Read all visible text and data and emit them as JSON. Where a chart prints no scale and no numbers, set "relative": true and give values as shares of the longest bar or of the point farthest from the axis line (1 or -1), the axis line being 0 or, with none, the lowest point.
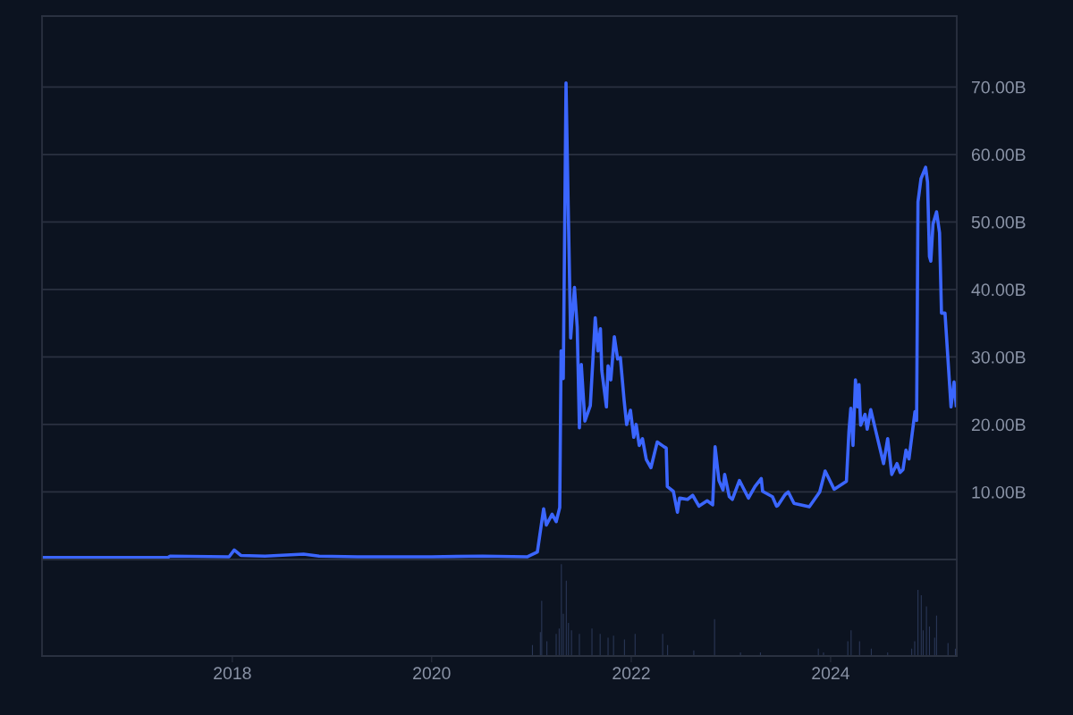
{
  "chart_data": [
    {
      "type": "line",
      "xlim": [
        "2016-02-04",
        "2025-04-07"
      ],
      "ylim": [
        0,
        80.5
      ],
      "yticks": [
        {
          "value": 0,
          "label": null
        },
        {
          "value": 10,
          "label": "10.00B"
        },
        {
          "value": 20,
          "label": "20.00B"
        },
        {
          "value": 30,
          "label": "30.00B"
        },
        {
          "value": 40,
          "label": "40.00B"
        },
        {
          "value": 50,
          "label": "50.00B"
        },
        {
          "value": 60,
          "label": "60.00B"
        },
        {
          "value": 70,
          "label": "70.00B"
        }
      ],
      "grid": "y",
      "tick_labels": "y",
      "series": [
        {
          "color": "#3b66ff",
          "x": [
            "2016-02-04",
            "2017-05-10",
            "2017-05-18",
            "2017-12-20",
            "2018-01-08",
            "2018-02-01",
            "2018-05-01",
            "2018-09-19",
            "2018-11-15",
            "2019-04-04",
            "2020-01-01",
            "2020-07-06",
            "2020-12-17",
            "2021-01-22",
            "2021-02-14",
            "2021-02-24",
            "2021-03-17",
            "2021-04-01",
            "2021-04-14",
            "2021-04-19",
            "2021-04-27",
            "2021-05-07",
            "2021-05-15",
            "2021-05-24",
            "2021-06-07",
            "2021-06-17",
            "2021-06-25",
            "2021-07-02",
            "2021-07-15",
            "2021-08-04",
            "2021-08-22",
            "2021-09-01",
            "2021-09-10",
            "2021-09-15",
            "2021-10-02",
            "2021-10-08",
            "2021-10-18",
            "2021-10-31",
            "2021-11-12",
            "2021-11-22",
            "2021-12-06",
            "2021-12-15",
            "2021-12-29",
            "2022-01-10",
            "2022-01-19",
            "2022-01-30",
            "2022-02-11",
            "2022-02-25",
            "2022-03-14",
            "2022-04-06",
            "2022-05-01",
            "2022-05-09",
            "2022-05-13",
            "2022-06-04",
            "2022-06-19",
            "2022-06-27",
            "2022-07-26",
            "2022-08-14",
            "2022-09-06",
            "2022-10-06",
            "2022-10-26",
            "2022-11-04",
            "2022-11-18",
            "2022-12-03",
            "2022-12-09",
            "2022-12-26",
            "2023-01-06",
            "2023-02-01",
            "2023-03-06",
            "2023-03-30",
            "2023-04-22",
            "2023-04-27",
            "2023-06-02",
            "2023-06-17",
            "2023-06-22",
            "2023-07-18",
            "2023-07-30",
            "2023-08-20",
            "2023-10-15",
            "2023-11-22",
            "2023-12-12",
            "2024-01-14",
            "2024-02-28",
            "2024-03-08",
            "2024-03-15",
            "2024-03-23",
            "2024-04-01",
            "2024-04-09",
            "2024-04-14",
            "2024-04-20",
            "2024-05-06",
            "2024-05-14",
            "2024-05-27",
            "2024-06-27",
            "2024-07-13",
            "2024-07-28",
            "2024-08-12",
            "2024-08-31",
            "2024-09-12",
            "2024-09-22",
            "2024-10-03",
            "2024-10-14",
            "2024-11-05",
            "2024-11-11",
            "2024-11-16",
            "2024-11-27",
            "2024-12-14",
            "2024-12-21",
            "2024-12-28",
            "2025-01-02",
            "2025-01-10",
            "2025-01-23",
            "2025-02-03",
            "2025-02-10",
            "2025-02-23",
            "2025-03-06",
            "2025-03-17",
            "2025-03-28",
            "2025-04-05"
          ],
          "values": [
            0.3,
            0.3,
            0.5,
            0.4,
            1.4,
            0.6,
            0.5,
            0.8,
            0.5,
            0.4,
            0.4,
            0.5,
            0.4,
            1.1,
            7.5,
            5.1,
            6.7,
            5.6,
            7.7,
            30.9,
            26.8,
            70.6,
            52.4,
            32.8,
            40.3,
            34.4,
            19.5,
            28.9,
            20.5,
            22.8,
            35.8,
            30.9,
            34.2,
            28.0,
            22.6,
            28.7,
            26.6,
            33.0,
            29.7,
            29.9,
            23.5,
            20.0,
            22.1,
            18.1,
            20.0,
            16.9,
            17.9,
            14.8,
            13.6,
            17.4,
            16.7,
            16.5,
            10.8,
            10.1,
            7.0,
            9.1,
            8.9,
            9.5,
            7.9,
            8.7,
            8.1,
            16.7,
            11.7,
            10.3,
            12.6,
            9.3,
            8.9,
            11.7,
            9.1,
            10.8,
            12.0,
            10.1,
            9.3,
            7.9,
            8.0,
            9.6,
            10.0,
            8.3,
            7.8,
            10.0,
            13.1,
            10.4,
            11.6,
            18.9,
            22.4,
            16.9,
            26.6,
            22.6,
            25.9,
            19.9,
            21.5,
            19.3,
            22.2,
            16.9,
            14.2,
            17.9,
            12.6,
            14.2,
            12.9,
            13.3,
            16.2,
            14.9,
            21.9,
            20.6,
            53.0,
            56.4,
            58.1,
            55.9,
            44.9,
            44.2,
            49.7,
            51.5,
            48.4,
            36.5,
            36.5,
            29.5,
            22.6,
            26.3,
            22.8
          ]
        }
      ]
    },
    {
      "type": "bar",
      "relative": true,
      "color": "#2b3858",
      "xlim": [
        "2016-02-04",
        "2025-04-07"
      ],
      "xticks": [
        {
          "value": "2018-01-01",
          "label": "2018"
        },
        {
          "value": "2020-01-01",
          "label": "2020"
        },
        {
          "value": "2022-01-01",
          "label": "2022"
        },
        {
          "value": "2024-01-01",
          "label": "2024"
        }
      ],
      "tick_labels": "x",
      "grid": false,
      "x": [
        "2021-01-04",
        "2021-02-02",
        "2021-02-07",
        "2021-02-26",
        "2021-04-01",
        "2021-04-12",
        "2021-04-20",
        "2021-04-27",
        "2021-05-08",
        "2021-05-16",
        "2021-05-27",
        "2021-06-25",
        "2021-08-10",
        "2021-09-09",
        "2021-10-08",
        "2021-10-28",
        "2021-12-07",
        "2022-01-15",
        "2022-04-26",
        "2022-05-14",
        "2022-08-18",
        "2022-11-02",
        "2023-02-05",
        "2023-04-19",
        "2023-11-17",
        "2023-12-06",
        "2024-03-04",
        "2024-03-16",
        "2024-04-16",
        "2024-05-29",
        "2024-07-28",
        "2024-10-24",
        "2024-11-04",
        "2024-11-16",
        "2024-11-28",
        "2024-12-05",
        "2024-12-17",
        "2024-12-28",
        "2025-01-16",
        "2025-01-23",
        "2025-03-06",
        "2025-04-02"
      ],
      "values": [
        0.12,
        0.26,
        0.6,
        0.16,
        0.24,
        0.3,
        1.0,
        0.46,
        0.82,
        0.36,
        0.28,
        0.24,
        0.3,
        0.24,
        0.2,
        0.22,
        0.18,
        0.24,
        0.24,
        0.12,
        0.06,
        0.4,
        0.04,
        0.04,
        0.08,
        0.04,
        0.16,
        0.28,
        0.16,
        0.08,
        0.04,
        0.08,
        0.16,
        0.72,
        0.66,
        0.28,
        0.54,
        0.32,
        0.2,
        0.44,
        0.14,
        0.08
      ]
    }
  ]
}
